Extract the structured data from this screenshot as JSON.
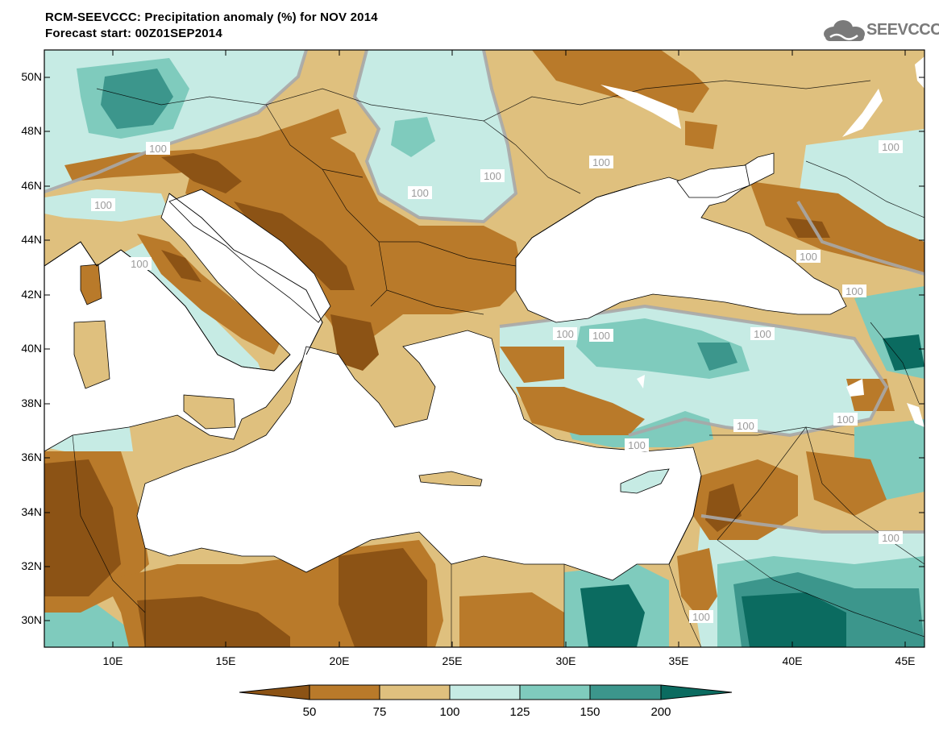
{
  "header": {
    "title": "RCM-SEEVCCC: Precipitation anomaly (%) for NOV 2014",
    "subtitle": "Forecast start: 00Z01SEP2014",
    "logo_text": "SEEVCCC"
  },
  "map": {
    "variable": "Precipitation anomaly (%)",
    "lat_ticks": [
      "50N",
      "48N",
      "46N",
      "44N",
      "42N",
      "40N",
      "38N",
      "36N",
      "34N",
      "32N",
      "30N"
    ],
    "lon_ticks": [
      "10E",
      "15E",
      "20E",
      "25E",
      "30E",
      "35E",
      "40E",
      "45E"
    ],
    "contour_label": "100",
    "colors": {
      "below_50": "#8c5315",
      "50_75": "#b97a2a",
      "75_100": "#dfc07e",
      "100_125": "#c6ebe4",
      "125_150": "#7fcbbd",
      "150_200": "#3c968c",
      "above_200": "#0b6b60",
      "sea": "#ffffff",
      "contour100": "#a8a8a8"
    }
  },
  "colorbar": {
    "labels": [
      "50",
      "75",
      "100",
      "125",
      "150",
      "200"
    ]
  }
}
